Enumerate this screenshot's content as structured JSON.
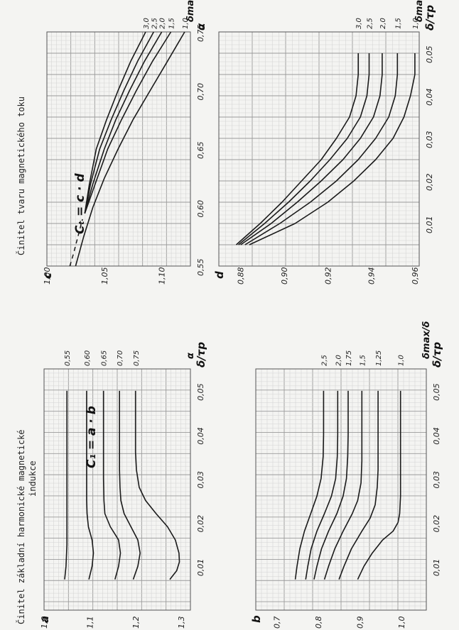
{
  "page": {
    "title_left": "Činitel základní harmonické magnetické",
    "title_left_line2": "indukce",
    "title_right": "Činitel tvaru magnetického toku"
  },
  "chart_data": [
    {
      "id": "a",
      "type": "line",
      "panel_label": "a",
      "annotation": "C₁ = a · b",
      "xlabel": "δ/τp",
      "x_ticks": [
        "0,01",
        "0,02",
        "0,03",
        "0,04",
        "0,05"
      ],
      "y_ticks": [
        "1,0",
        "1,1",
        "1,2",
        "1,3"
      ],
      "xlim": [
        0,
        0.055
      ],
      "ylim": [
        1.0,
        1.32
      ],
      "legend_title": "α",
      "series": [
        {
          "name": "0,75",
          "x": [
            0.007,
            0.009,
            0.011,
            0.013,
            0.016,
            0.019,
            0.022,
            0.025,
            0.028,
            0.032,
            0.036,
            0.04,
            0.045,
            0.05
          ],
          "y": [
            1.275,
            1.29,
            1.296,
            1.295,
            1.287,
            1.27,
            1.245,
            1.222,
            1.208,
            1.202,
            1.2,
            1.2,
            1.2,
            1.2
          ]
        },
        {
          "name": "0,70",
          "x": [
            0.007,
            0.01,
            0.013,
            0.016,
            0.019,
            0.022,
            0.025,
            0.028,
            0.032,
            0.04,
            0.05
          ],
          "y": [
            1.195,
            1.205,
            1.21,
            1.205,
            1.19,
            1.175,
            1.168,
            1.166,
            1.165,
            1.165,
            1.165
          ]
        },
        {
          "name": "0,65",
          "x": [
            0.007,
            0.01,
            0.013,
            0.016,
            0.019,
            0.022,
            0.025,
            0.03,
            0.04,
            0.05
          ],
          "y": [
            1.155,
            1.163,
            1.167,
            1.163,
            1.145,
            1.133,
            1.131,
            1.13,
            1.13,
            1.13
          ]
        },
        {
          "name": "0,60",
          "x": [
            0.007,
            0.01,
            0.013,
            0.016,
            0.019,
            0.022,
            0.025,
            0.03,
            0.04,
            0.05
          ],
          "y": [
            1.098,
            1.105,
            1.108,
            1.105,
            1.097,
            1.094,
            1.093,
            1.093,
            1.093,
            1.093
          ]
        },
        {
          "name": "0,55",
          "x": [
            0.007,
            0.01,
            0.015,
            0.02,
            0.025,
            0.03,
            0.04,
            0.05
          ],
          "y": [
            1.045,
            1.048,
            1.05,
            1.05,
            1.05,
            1.05,
            1.05,
            1.05
          ],
          "dashed_until": 0.009
        }
      ]
    },
    {
      "id": "b",
      "type": "line",
      "panel_label": "b",
      "xlabel": "δ/τp",
      "x_ticks": [
        "0,01",
        "0,02",
        "0,03",
        "0,04",
        "0,05"
      ],
      "y_ticks": [
        "0,7",
        "0,8",
        "0,9",
        "1,0"
      ],
      "xlim": [
        0,
        0.055
      ],
      "ylim": [
        0.65,
        1.06
      ],
      "legend_title": "δmax/δ",
      "series": [
        {
          "name": "1,0",
          "x": [
            0.007,
            0.01,
            0.013,
            0.016,
            0.018,
            0.02,
            0.022,
            0.026,
            0.03,
            0.04,
            0.05
          ],
          "y": [
            0.895,
            0.91,
            0.93,
            0.955,
            0.98,
            0.992,
            0.996,
            0.998,
            0.998,
            0.998,
            0.998
          ]
        },
        {
          "name": "1,25",
          "x": [
            0.007,
            0.01,
            0.014,
            0.018,
            0.021,
            0.024,
            0.028,
            0.032,
            0.04,
            0.05
          ],
          "y": [
            0.85,
            0.862,
            0.88,
            0.905,
            0.925,
            0.937,
            0.942,
            0.944,
            0.944,
            0.944
          ]
        },
        {
          "name": "1,5",
          "x": [
            0.007,
            0.01,
            0.014,
            0.018,
            0.022,
            0.025,
            0.029,
            0.034,
            0.04,
            0.05
          ],
          "y": [
            0.815,
            0.825,
            0.84,
            0.86,
            0.882,
            0.895,
            0.903,
            0.905,
            0.905,
            0.905
          ]
        },
        {
          "name": "1,75",
          "x": [
            0.007,
            0.01,
            0.014,
            0.018,
            0.022,
            0.026,
            0.03,
            0.035,
            0.04,
            0.05
          ],
          "y": [
            0.79,
            0.797,
            0.808,
            0.825,
            0.845,
            0.86,
            0.868,
            0.871,
            0.872,
            0.872
          ]
        },
        {
          "name": "2,0",
          "x": [
            0.007,
            0.01,
            0.014,
            0.018,
            0.022,
            0.026,
            0.03,
            0.035,
            0.04,
            0.05
          ],
          "y": [
            0.77,
            0.775,
            0.783,
            0.797,
            0.815,
            0.832,
            0.842,
            0.846,
            0.847,
            0.847
          ]
        },
        {
          "name": "2,5",
          "x": [
            0.007,
            0.01,
            0.014,
            0.018,
            0.022,
            0.026,
            0.03,
            0.035,
            0.04,
            0.05
          ],
          "y": [
            0.745,
            0.749,
            0.756,
            0.767,
            0.782,
            0.797,
            0.807,
            0.812,
            0.813,
            0.813
          ]
        }
      ]
    },
    {
      "id": "c",
      "type": "line",
      "panel_label": "c",
      "annotation": "Cₜ = c · d",
      "xlabel": "α",
      "x_ticks": [
        "0,55",
        "0,60",
        "0,65",
        "0,70",
        "0,75"
      ],
      "y_ticks": [
        "1,00",
        "1,05",
        "1,10"
      ],
      "xlim": [
        0.55,
        0.75
      ],
      "ylim": [
        1.0,
        1.125
      ],
      "legend_title": "δmax/δ",
      "series": [
        {
          "name": "1,0",
          "x": [
            0.55,
            0.575,
            0.6,
            0.625,
            0.65,
            0.675,
            0.7,
            0.725,
            0.75
          ],
          "y": [
            1.025,
            1.032,
            1.04,
            1.05,
            1.062,
            1.075,
            1.09,
            1.105,
            1.12
          ]
        },
        {
          "name": "1,5",
          "x": [
            0.595,
            0.62,
            0.65,
            0.675,
            0.7,
            0.725,
            0.75
          ],
          "y": [
            1.033,
            1.042,
            1.053,
            1.065,
            1.078,
            1.092,
            1.108
          ]
        },
        {
          "name": "2,0",
          "x": [
            0.595,
            0.62,
            0.65,
            0.675,
            0.7,
            0.725,
            0.75
          ],
          "y": [
            1.033,
            1.04,
            1.05,
            1.06,
            1.072,
            1.085,
            1.1
          ]
        },
        {
          "name": "2,5",
          "x": [
            0.595,
            0.62,
            0.65,
            0.675,
            0.7,
            0.725,
            0.75
          ],
          "y": [
            1.033,
            1.038,
            1.046,
            1.056,
            1.067,
            1.079,
            1.093
          ]
        },
        {
          "name": "3,0",
          "x": [
            0.595,
            0.62,
            0.65,
            0.675,
            0.7,
            0.725,
            0.75
          ],
          "y": [
            1.033,
            1.037,
            1.043,
            1.052,
            1.062,
            1.073,
            1.086
          ]
        }
      ],
      "dashed_extension": {
        "x": [
          0.55,
          0.56,
          0.575,
          0.59
        ],
        "y": [
          1.02,
          1.023,
          1.027,
          1.031
        ]
      }
    },
    {
      "id": "d",
      "type": "line",
      "panel_label": "d",
      "xlabel": "δ/τp",
      "x_ticks": [
        "0,01",
        "0,02",
        "0,03",
        "0,04",
        "0,05"
      ],
      "y_ticks": [
        "0,88",
        "0,90",
        "0,92",
        "0,94",
        "0,96"
      ],
      "xlim": [
        0,
        0.055
      ],
      "ylim": [
        0.87,
        0.962
      ],
      "legend_title": "δmax/δ",
      "series": [
        {
          "name": "1,0",
          "x": [
            0.005,
            0.01,
            0.015,
            0.02,
            0.025,
            0.03,
            0.035,
            0.04,
            0.045,
            0.05
          ],
          "y": [
            0.884,
            0.905,
            0.92,
            0.932,
            0.942,
            0.95,
            0.955,
            0.958,
            0.96,
            0.96
          ]
        },
        {
          "name": "1,5",
          "x": [
            0.005,
            0.01,
            0.015,
            0.02,
            0.025,
            0.03,
            0.035,
            0.04,
            0.045,
            0.05
          ],
          "y": [
            0.882,
            0.898,
            0.912,
            0.924,
            0.934,
            0.942,
            0.948,
            0.951,
            0.952,
            0.952
          ]
        },
        {
          "name": "2,0",
          "x": [
            0.005,
            0.01,
            0.015,
            0.02,
            0.025,
            0.03,
            0.035,
            0.04,
            0.045,
            0.05
          ],
          "y": [
            0.88,
            0.894,
            0.906,
            0.917,
            0.927,
            0.935,
            0.941,
            0.944,
            0.945,
            0.945
          ]
        },
        {
          "name": "2,5",
          "x": [
            0.005,
            0.01,
            0.015,
            0.02,
            0.025,
            0.03,
            0.035,
            0.04,
            0.045,
            0.05
          ],
          "y": [
            0.879,
            0.891,
            0.902,
            0.912,
            0.921,
            0.929,
            0.935,
            0.938,
            0.939,
            0.939
          ]
        },
        {
          "name": "3,0",
          "x": [
            0.005,
            0.01,
            0.015,
            0.02,
            0.025,
            0.03,
            0.035,
            0.04,
            0.045,
            0.05
          ],
          "y": [
            0.878,
            0.889,
            0.899,
            0.908,
            0.917,
            0.924,
            0.93,
            0.933,
            0.934,
            0.934
          ]
        }
      ]
    }
  ]
}
